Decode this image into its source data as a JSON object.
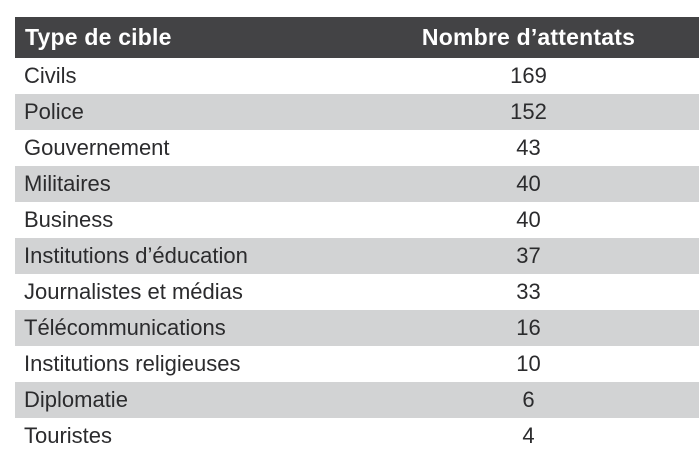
{
  "chart_data": {
    "type": "table",
    "columns": [
      "Type de cible",
      "Nombre d’attentats"
    ],
    "rows": [
      {
        "label": "Civils",
        "value": 169
      },
      {
        "label": "Police",
        "value": 152
      },
      {
        "label": "Gouvernement",
        "value": 43
      },
      {
        "label": "Militaires",
        "value": 40
      },
      {
        "label": "Business",
        "value": 40
      },
      {
        "label": "Institutions d’éducation",
        "value": 37
      },
      {
        "label": "Journalistes et médias",
        "value": 33
      },
      {
        "label": "Télécommunications",
        "value": 16
      },
      {
        "label": "Institutions religieuses",
        "value": 10
      },
      {
        "label": "Diplomatie",
        "value": 6
      },
      {
        "label": "Touristes",
        "value": 4
      }
    ],
    "title": "",
    "layout_hints": {
      "striped": true,
      "header_style": "dark-bar-white-bold-text",
      "value_column_alignment": "center"
    }
  },
  "colors": {
    "page_bg": "#ffffff",
    "header_bg": "#434345",
    "header_text": "#ffffff",
    "row_bg": "#ffffff",
    "row_alt_bg": "#d2d3d4",
    "body_text": "#2b2b2d"
  }
}
